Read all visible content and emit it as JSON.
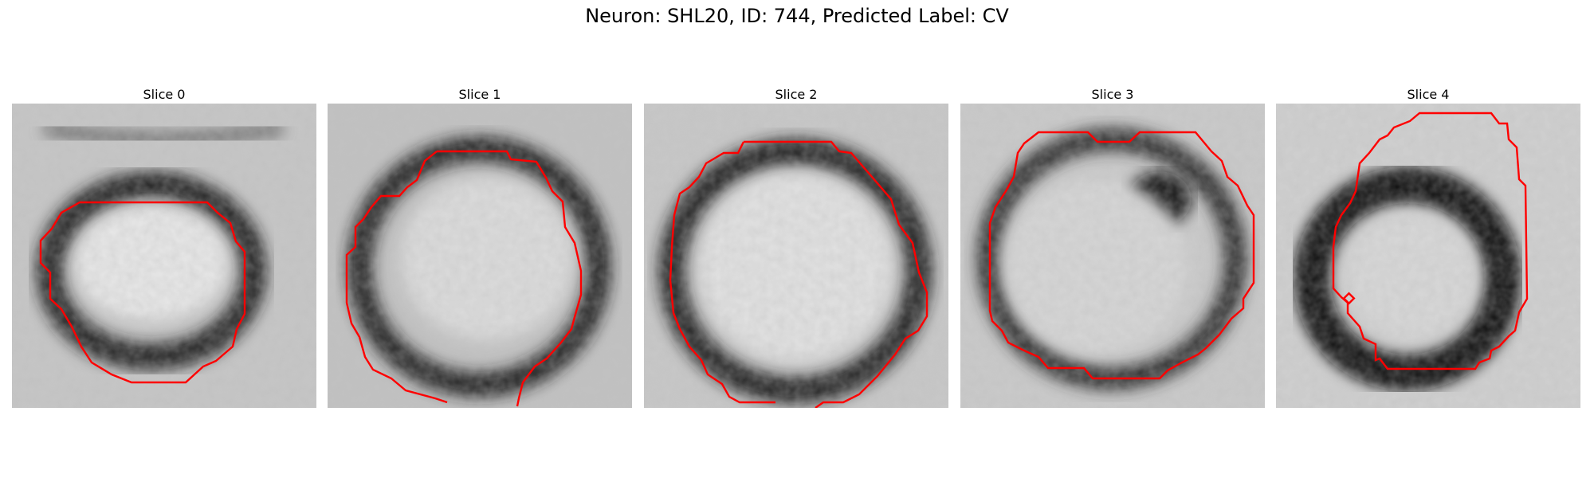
{
  "figure": {
    "title": "Neuron: SHL20, ID: 744, Predicted Label: CV"
  },
  "panels": [
    {
      "title": "Slice 0"
    },
    {
      "title": "Slice 1"
    },
    {
      "title": "Slice 2"
    },
    {
      "title": "Slice 3"
    },
    {
      "title": "Slice 4"
    }
  ],
  "colors": {
    "contour": "#ff0000",
    "ring": "#151515",
    "background": "#c4c4c4",
    "center": "#e6e6e6"
  }
}
